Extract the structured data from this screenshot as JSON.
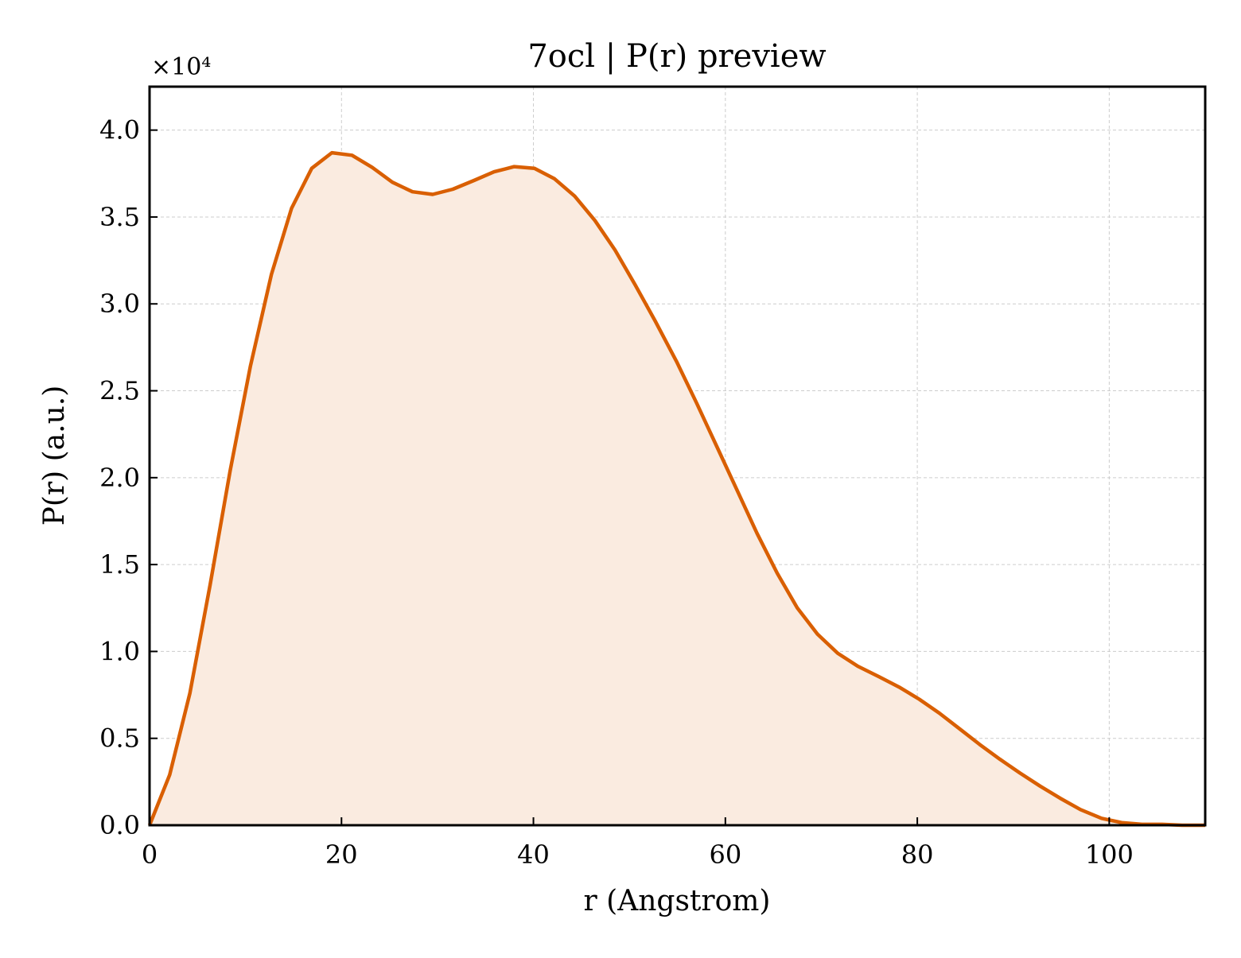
{
  "chart_data": {
    "type": "area",
    "title": "7ocl | P(r) preview",
    "xlabel": "r (Angstrom)",
    "ylabel": "P(r) (a.u.)",
    "y_offset_label": "×10⁴",
    "xlim": [
      0,
      110
    ],
    "ylim": [
      0,
      4.25
    ],
    "x_ticks": [
      0,
      20,
      40,
      60,
      80,
      100
    ],
    "x_tick_labels": [
      "0",
      "20",
      "40",
      "60",
      "80",
      "100"
    ],
    "y_ticks": [
      0,
      0.5,
      1.0,
      1.5,
      2.0,
      2.5,
      3.0,
      3.5,
      4.0
    ],
    "y_tick_labels": [
      "0.0",
      "0.5",
      "1.0",
      "1.5",
      "2.0",
      "2.5",
      "3.0",
      "3.5",
      "4.0"
    ],
    "grid": true,
    "line_color": "#d95f02",
    "fill_color": "#faebe0",
    "series": [
      {
        "x": [
          0,
          2.1,
          4.2,
          6.3,
          8.4,
          10.5,
          12.7,
          14.8,
          16.9,
          19.0,
          21.1,
          23.2,
          25.3,
          27.4,
          29.5,
          31.6,
          33.8,
          35.9,
          38.0,
          40.1,
          42.2,
          44.3,
          46.4,
          48.5,
          50.6,
          52.7,
          54.9,
          57.0,
          59.1,
          61.2,
          63.3,
          65.4,
          67.5,
          69.6,
          71.7,
          73.8,
          76.0,
          78.1,
          80.2,
          82.3,
          84.4,
          86.5,
          88.6,
          90.7,
          92.8,
          94.9,
          97.0,
          99.2,
          101.3,
          103.4,
          105.5,
          107.6,
          110
        ],
        "y": [
          0.0,
          0.29,
          0.76,
          1.38,
          2.04,
          2.64,
          3.17,
          3.55,
          3.78,
          3.87,
          3.855,
          3.785,
          3.7,
          3.645,
          3.63,
          3.66,
          3.71,
          3.76,
          3.79,
          3.78,
          3.72,
          3.62,
          3.48,
          3.31,
          3.11,
          2.9,
          2.67,
          2.43,
          2.18,
          1.93,
          1.68,
          1.45,
          1.25,
          1.1,
          0.99,
          0.915,
          0.855,
          0.795,
          0.725,
          0.645,
          0.555,
          0.465,
          0.38,
          0.3,
          0.225,
          0.155,
          0.09,
          0.04,
          0.015,
          0.005,
          0.005,
          0.0,
          0.0
        ]
      }
    ]
  }
}
